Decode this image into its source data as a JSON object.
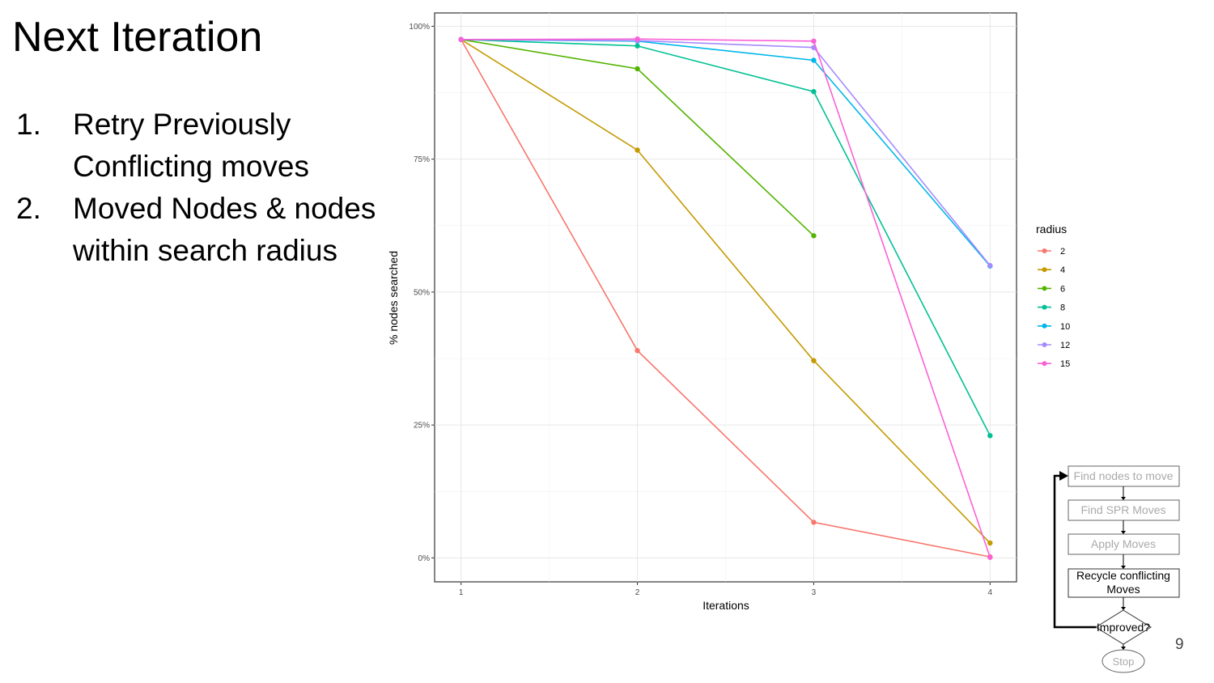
{
  "slide": {
    "title": "Next Iteration",
    "bullets": [
      {
        "num": "1.",
        "text": "Retry Previously Conflicting moves"
      },
      {
        "num": "2.",
        "text": "Moved Nodes & nodes within search radius"
      }
    ],
    "page_number": "9"
  },
  "chart_data": {
    "type": "line",
    "title": "",
    "xlabel": "Iterations",
    "ylabel": "% nodes searched",
    "x": [
      1,
      2,
      3,
      4
    ],
    "x_ticks": [
      "1",
      "2",
      "3",
      "4"
    ],
    "xlim": [
      0.85,
      4.15
    ],
    "ylim": [
      -0.045,
      1.025
    ],
    "y_ticks": [
      {
        "value": 0,
        "label": "0%"
      },
      {
        "value": 0.25,
        "label": "25%"
      },
      {
        "value": 0.5,
        "label": "50%"
      },
      {
        "value": 0.75,
        "label": "75%"
      },
      {
        "value": 1.0,
        "label": "100%"
      }
    ],
    "grid": true,
    "legend_title": "radius",
    "legend_position": "right",
    "series": [
      {
        "name": "2",
        "color": "#F8766D",
        "values": [
          0.975,
          0.39,
          0.067,
          0.002
        ]
      },
      {
        "name": "4",
        "color": "#C49A00",
        "values": [
          0.975,
          0.767,
          0.371,
          0.028
        ]
      },
      {
        "name": "6",
        "color": "#53B400",
        "values": [
          0.975,
          0.92,
          0.606,
          null
        ]
      },
      {
        "name": "8",
        "color": "#00C094",
        "values": [
          0.975,
          0.963,
          0.877,
          0.23
        ]
      },
      {
        "name": "10",
        "color": "#00B6EB",
        "values": [
          0.975,
          0.972,
          0.936,
          0.549
        ]
      },
      {
        "name": "12",
        "color": "#A58AFF",
        "values": [
          0.975,
          0.973,
          0.96,
          0.55
        ]
      },
      {
        "name": "15",
        "color": "#FB61D7",
        "values": [
          0.975,
          0.976,
          0.972,
          0.001
        ]
      }
    ]
  },
  "flowchart": {
    "steps": [
      "Find nodes to move",
      "Find SPR Moves",
      "Apply Moves"
    ],
    "recycle_line1": "Recycle conflicting",
    "recycle_line2": "Moves",
    "decision": "Improved?",
    "end": "Stop"
  }
}
